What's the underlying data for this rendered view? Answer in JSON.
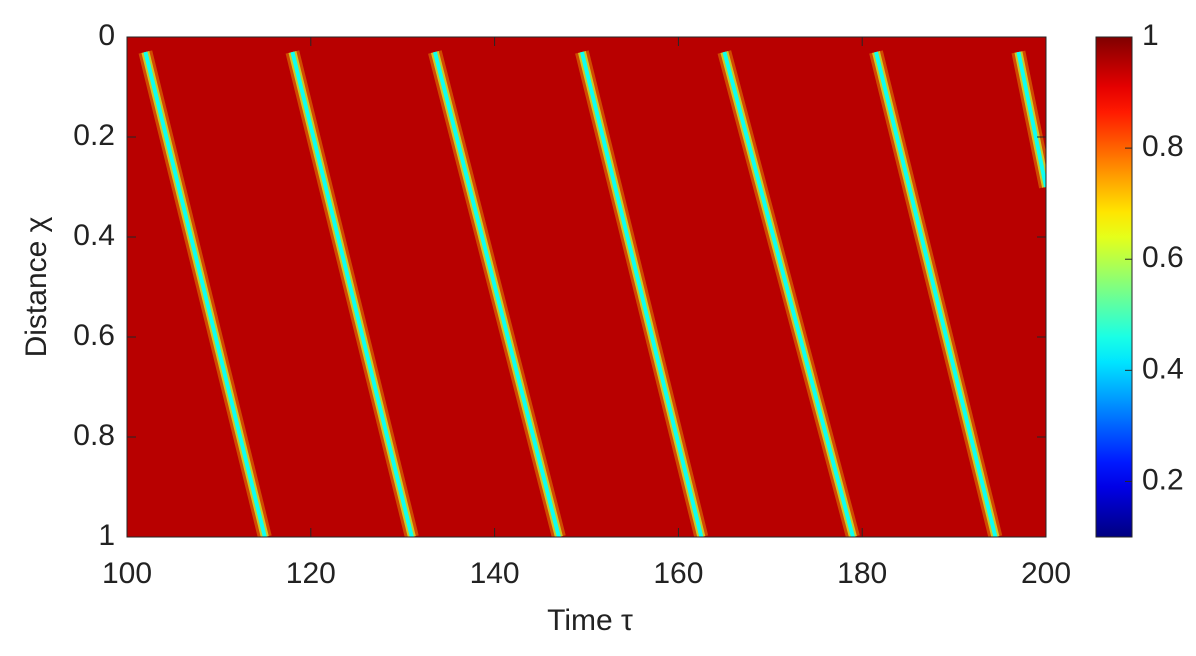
{
  "chart_data": {
    "type": "heatmap",
    "colormap": "jet",
    "xlabel": "Time τ",
    "ylabel": "Distance χ",
    "xlim": [
      100,
      200
    ],
    "xticks": [
      100,
      120,
      140,
      160,
      180,
      200
    ],
    "ylim": [
      0,
      1
    ],
    "yticks": [
      0,
      0.2,
      0.4,
      0.6,
      0.8,
      1
    ],
    "y_reversed": true,
    "clim": [
      0.1,
      1
    ],
    "cticks": [
      0.2,
      0.4,
      0.6,
      0.8,
      1
    ],
    "background_value": 0.95,
    "front_value": 0.45,
    "series": [
      {
        "x": [
          102,
          115
        ],
        "values": [
          0.03,
          1
        ]
      },
      {
        "x": [
          118,
          131
        ],
        "values": [
          0.03,
          1
        ]
      },
      {
        "x": [
          133.5,
          147
        ],
        "values": [
          0.03,
          1
        ]
      },
      {
        "x": [
          149.5,
          162.5
        ],
        "values": [
          0.03,
          1
        ]
      },
      {
        "x": [
          165,
          179
        ],
        "values": [
          0.03,
          1
        ]
      },
      {
        "x": [
          181.5,
          194.5
        ],
        "values": [
          0.03,
          1
        ]
      },
      {
        "x": [
          197,
          200
        ],
        "values": [
          0.03,
          0.3
        ]
      }
    ]
  }
}
